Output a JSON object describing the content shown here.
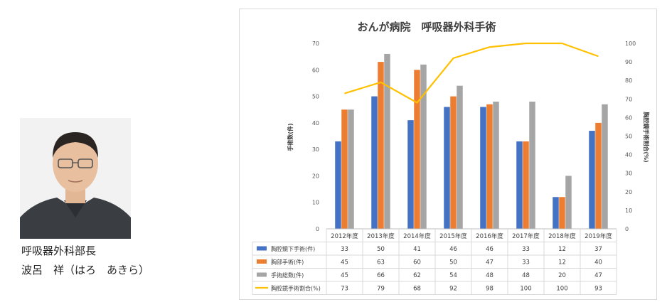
{
  "profile": {
    "department": "呼吸器外科部長",
    "name": "波呂　祥（はろ　あきら）"
  },
  "chart_data": {
    "type": "bar",
    "title": "おんが病院　呼吸器外科手術",
    "xlabel": "",
    "ylabel": "手術数(件)",
    "y2label": "胸腔鏡手術割合(%)",
    "ylim": [
      0,
      70
    ],
    "y2lim": [
      0,
      100
    ],
    "yticks": [
      "0",
      "10",
      "20",
      "30",
      "40",
      "50",
      "60",
      "70"
    ],
    "y2ticks": [
      "0",
      "10",
      "20",
      "30",
      "40",
      "50",
      "60",
      "70",
      "80",
      "90",
      "100"
    ],
    "grid": false,
    "legend": "data-table",
    "categories": [
      "2012年度",
      "2013年度",
      "2014年度",
      "2015年度",
      "2016年度",
      "2017年度",
      "2018年度",
      "2019年度"
    ],
    "series": [
      {
        "name": "胸腔鏡下手術(件)",
        "type": "bar",
        "axis": "left",
        "color": "#4472C4",
        "values": [
          33,
          50,
          41,
          46,
          46,
          33,
          12,
          37
        ]
      },
      {
        "name": "胸部手術(件)",
        "type": "bar",
        "axis": "left",
        "color": "#ED7D31",
        "values": [
          45,
          63,
          60,
          50,
          47,
          33,
          12,
          40
        ]
      },
      {
        "name": "手術総数(件)",
        "type": "bar",
        "axis": "left",
        "color": "#A5A5A5",
        "values": [
          45,
          66,
          62,
          54,
          48,
          48,
          20,
          47
        ]
      },
      {
        "name": "胸腔鏡手術割合(%)",
        "type": "line",
        "axis": "right",
        "color": "#FFC000",
        "values": [
          73,
          79,
          68,
          92,
          98,
          100,
          100,
          93
        ]
      }
    ]
  }
}
